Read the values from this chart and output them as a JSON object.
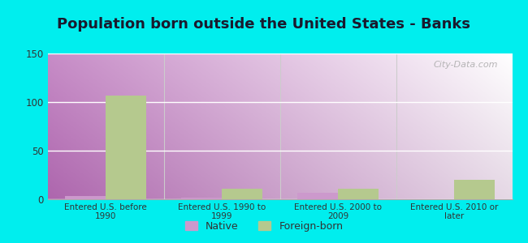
{
  "title": "Population born outside the United States - Banks",
  "categories": [
    "Entered U.S. before\n1990",
    "Entered U.S. 1990 to\n1999",
    "Entered U.S. 2000 to\n2009",
    "Entered U.S. 2010 or\nlater"
  ],
  "native_values": [
    3,
    2,
    7,
    0
  ],
  "foreign_values": [
    107,
    11,
    11,
    20
  ],
  "native_color": "#cc99cc",
  "foreign_color": "#b5c98e",
  "ylim": [
    0,
    150
  ],
  "yticks": [
    0,
    50,
    100,
    150
  ],
  "outer_bg": "#00eeee",
  "bar_width": 0.35,
  "title_fontsize": 13,
  "watermark": "City-Data.com",
  "legend_native": "Native",
  "legend_foreign": "Foreign-born",
  "grid_color": "#ffffff",
  "separator_color": "#cccccc",
  "bg_left": "#c8e6c0",
  "bg_right": "#f0f8f0"
}
